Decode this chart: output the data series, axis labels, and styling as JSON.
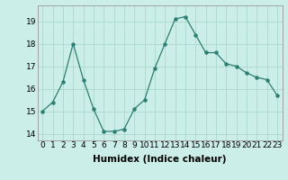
{
  "x": [
    0,
    1,
    2,
    3,
    4,
    5,
    6,
    7,
    8,
    9,
    10,
    11,
    12,
    13,
    14,
    15,
    16,
    17,
    18,
    19,
    20,
    21,
    22,
    23
  ],
  "y": [
    15.0,
    15.4,
    16.3,
    18.0,
    16.4,
    15.1,
    14.1,
    14.1,
    14.2,
    15.1,
    15.5,
    16.9,
    18.0,
    19.1,
    19.2,
    18.4,
    17.6,
    17.6,
    17.1,
    17.0,
    16.7,
    16.5,
    16.4,
    15.7
  ],
  "line_color": "#2d7e72",
  "bg_color": "#cceee8",
  "grid_color": "#aad8d0",
  "xlabel": "Humidex (Indice chaleur)",
  "ylim": [
    13.7,
    19.7
  ],
  "xlim": [
    -0.5,
    23.5
  ],
  "yticks": [
    14,
    15,
    16,
    17,
    18,
    19
  ],
  "xticks": [
    0,
    1,
    2,
    3,
    4,
    5,
    6,
    7,
    8,
    9,
    10,
    11,
    12,
    13,
    14,
    15,
    16,
    17,
    18,
    19,
    20,
    21,
    22,
    23
  ],
  "xlabel_fontsize": 7.5,
  "tick_fontsize": 6.5
}
